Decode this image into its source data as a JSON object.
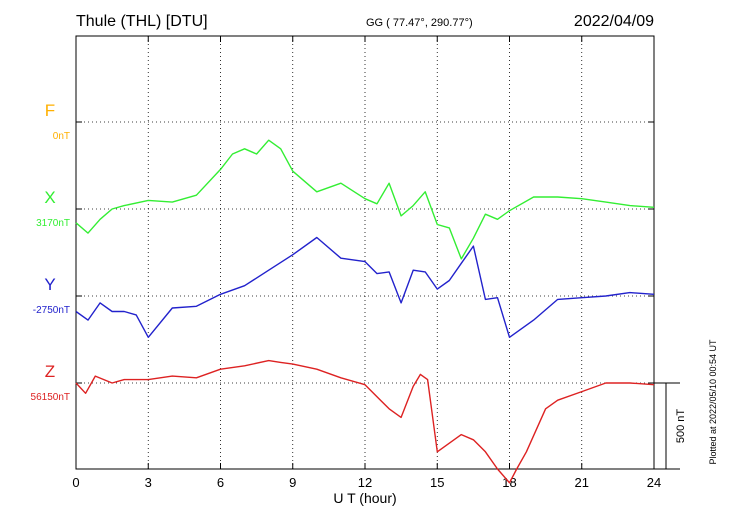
{
  "header": {
    "station": "Thule (THL)  [DTU]",
    "coords": "GG ( 77.47°, 290.77°)",
    "date": "2022/04/09"
  },
  "footer_note": "Plotted at 2022/05/10 00:54 UT",
  "chart_data": {
    "type": "line",
    "xlabel": "U T (hour)",
    "xlim": [
      0,
      24
    ],
    "xticks": [
      0,
      3,
      6,
      9,
      12,
      15,
      18,
      21,
      24
    ],
    "grid": true,
    "scale_bar": {
      "label": "500 nT",
      "value_nT": 500
    },
    "series": [
      {
        "name": "F",
        "baseline": "0nT",
        "color": "#ffb000",
        "x": [],
        "values": []
      },
      {
        "name": "X",
        "baseline": "3170nT",
        "color": "#33ee33",
        "x": [
          0,
          0.5,
          1,
          1.5,
          2,
          3,
          4,
          5,
          6,
          6.5,
          7,
          7.5,
          8,
          8.5,
          9,
          10,
          11,
          12,
          12.5,
          13,
          13.5,
          14,
          14.5,
          15,
          15.5,
          16,
          16.5,
          17,
          17.5,
          18,
          19,
          20,
          21,
          22,
          23,
          24
        ],
        "values": [
          -80,
          -140,
          -60,
          0,
          20,
          50,
          40,
          80,
          230,
          320,
          350,
          320,
          400,
          350,
          220,
          100,
          150,
          60,
          30,
          150,
          -40,
          20,
          100,
          -90,
          -110,
          -290,
          -170,
          -30,
          -60,
          -10,
          70,
          70,
          60,
          40,
          20,
          10
        ]
      },
      {
        "name": "Y",
        "baseline": "-2750nT",
        "color": "#2222cc",
        "x": [
          0,
          0.5,
          1,
          1.5,
          2,
          2.5,
          3,
          4,
          5,
          6,
          7,
          8,
          9,
          10,
          11,
          12,
          12.5,
          13,
          13.5,
          14,
          14.5,
          15,
          15.5,
          16,
          16.5,
          17,
          17.5,
          18,
          19,
          20,
          21,
          22,
          23,
          24
        ],
        "values": [
          -90,
          -140,
          -40,
          -90,
          -90,
          -110,
          -240,
          -70,
          -60,
          10,
          60,
          150,
          240,
          340,
          220,
          200,
          130,
          140,
          -40,
          150,
          140,
          40,
          90,
          190,
          290,
          -20,
          -10,
          -240,
          -140,
          -20,
          -10,
          0,
          20,
          10
        ]
      },
      {
        "name": "Z",
        "baseline": "56150nT",
        "color": "#dd2222",
        "x": [
          0,
          0.4,
          0.8,
          1.5,
          2,
          3,
          4,
          5,
          6,
          7,
          8,
          8.5,
          9,
          10,
          11,
          12,
          13,
          13.5,
          14,
          14.3,
          14.6,
          15,
          16,
          16.5,
          17,
          17.5,
          18,
          18.3,
          18.7,
          19.5,
          20,
          21,
          22,
          23,
          24
        ],
        "values": [
          0,
          -60,
          40,
          0,
          20,
          20,
          40,
          30,
          80,
          100,
          130,
          120,
          110,
          80,
          30,
          -10,
          -150,
          -200,
          -20,
          50,
          20,
          -400,
          -300,
          -330,
          -400,
          -500,
          -580,
          -500,
          -400,
          -150,
          -100,
          -50,
          0,
          0,
          -10
        ]
      }
    ]
  }
}
